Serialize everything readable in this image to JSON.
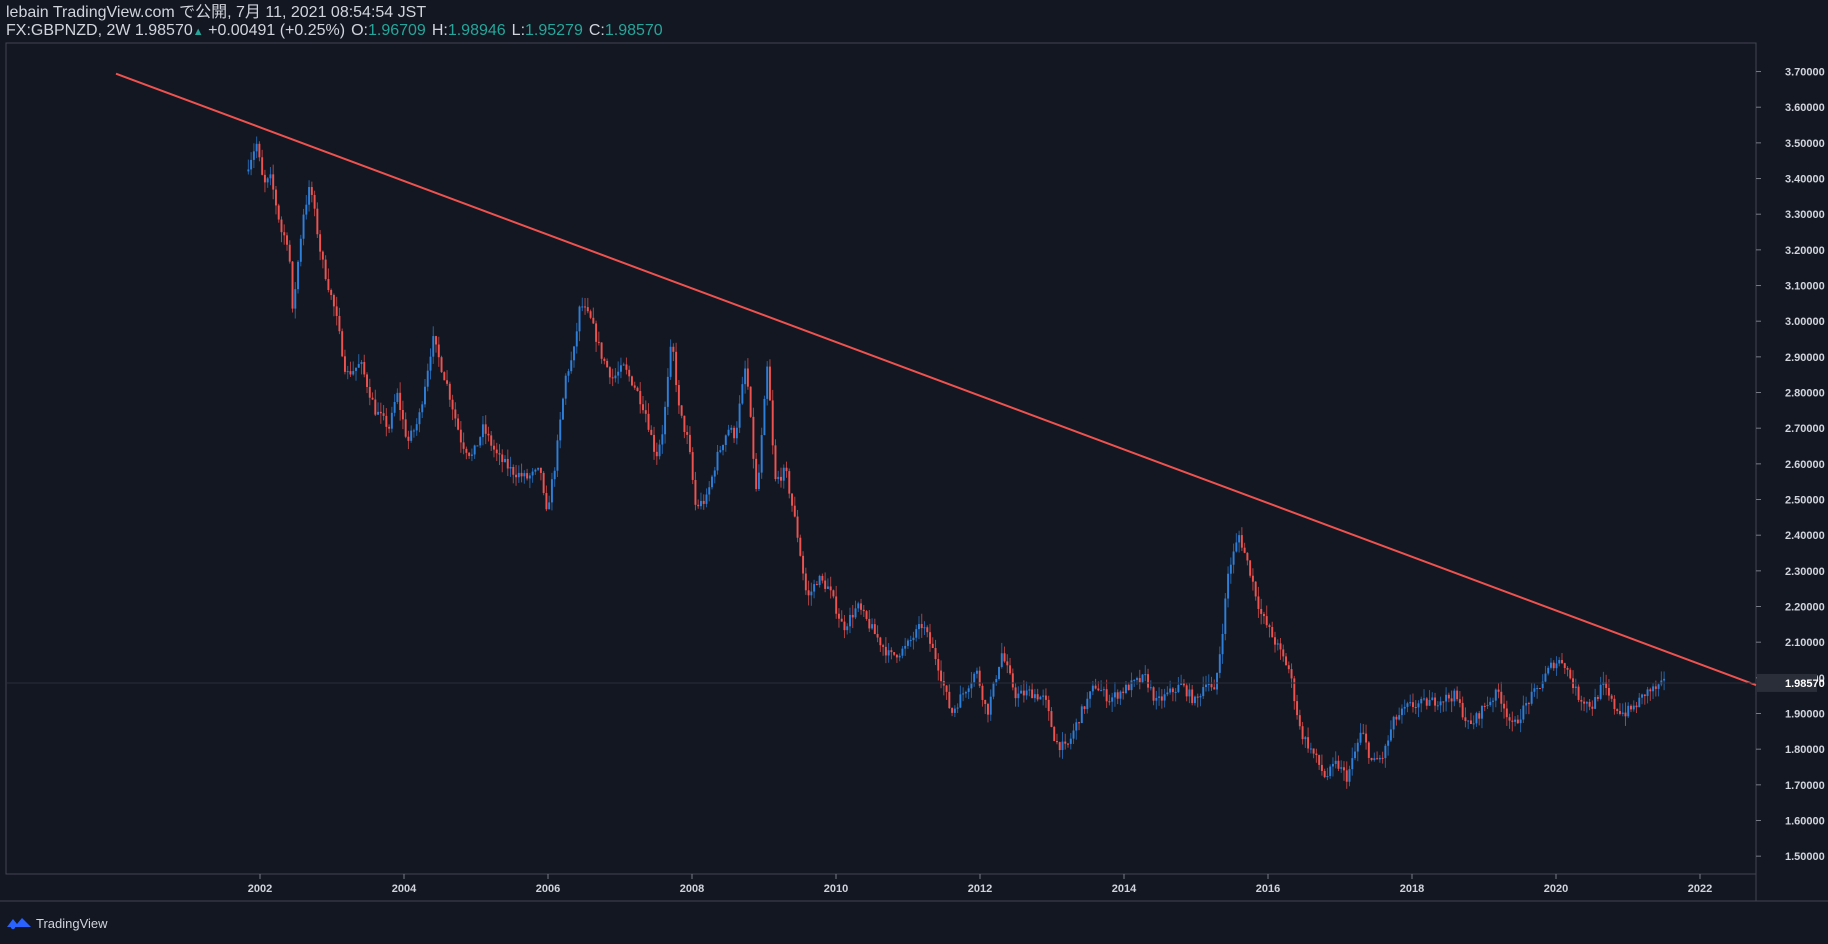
{
  "header": {
    "line1": "lebain TradingView.com で公開, 7月 11, 2021 08:54:54 JST",
    "symbol": "FX:GBPNZD, 2W",
    "last": "1.98570",
    "arrow": "▲",
    "change": "+0.00491 (+0.25%)",
    "o_label": "O:",
    "o_val": "1.96709",
    "h_label": "H:",
    "h_val": "1.98946",
    "l_label": "L:",
    "l_val": "1.95279",
    "c_label": "C:",
    "c_val": "1.98570"
  },
  "footer": {
    "brand": "TradingView",
    "logo_icon": "tradingview-logo-icon"
  },
  "colors": {
    "background": "#131722",
    "up": "#2e7fd9",
    "down": "#ef5350",
    "trendline": "#ef5350",
    "price_tag_bg": "#2a2e39",
    "text": "#d1d4dc",
    "green": "#26a69a"
  },
  "chart_data": {
    "type": "candlestick",
    "symbol": "GBPNZD",
    "interval": "2W",
    "ylim": [
      1.45,
      3.78
    ],
    "y_ticks": [
      "1.50000",
      "1.60000",
      "1.70000",
      "1.80000",
      "1.90000",
      "2.00000",
      "2.10000",
      "2.20000",
      "2.30000",
      "2.40000",
      "2.50000",
      "2.60000",
      "2.70000",
      "2.80000",
      "2.90000",
      "3.00000",
      "3.10000",
      "3.20000",
      "3.30000",
      "3.40000",
      "3.50000",
      "3.60000",
      "3.70000"
    ],
    "x_ticks": [
      "2002",
      "2004",
      "2006",
      "2008",
      "2010",
      "2012",
      "2014",
      "2016",
      "2018",
      "2020",
      "2022"
    ],
    "last_price": "1.98570",
    "trendline": [
      {
        "year": 2001.98,
        "price": 3.545
      },
      {
        "year": 2015.6,
        "price": 2.52
      }
    ],
    "price_path": [
      [
        2001.8,
        3.42
      ],
      [
        2001.95,
        3.5
      ],
      [
        2002.05,
        3.38
      ],
      [
        2002.15,
        3.4
      ],
      [
        2002.3,
        3.25
      ],
      [
        2002.4,
        3.22
      ],
      [
        2002.45,
        3.02
      ],
      [
        2002.6,
        3.3
      ],
      [
        2002.7,
        3.38
      ],
      [
        2002.85,
        3.18
      ],
      [
        2003.05,
        3.02
      ],
      [
        2003.2,
        2.85
      ],
      [
        2003.4,
        2.88
      ],
      [
        2003.6,
        2.75
      ],
      [
        2003.8,
        2.7
      ],
      [
        2003.9,
        2.8
      ],
      [
        2004.05,
        2.66
      ],
      [
        2004.2,
        2.72
      ],
      [
        2004.4,
        2.95
      ],
      [
        2004.6,
        2.82
      ],
      [
        2004.8,
        2.66
      ],
      [
        2004.95,
        2.62
      ],
      [
        2005.1,
        2.7
      ],
      [
        2005.3,
        2.62
      ],
      [
        2005.5,
        2.58
      ],
      [
        2005.7,
        2.56
      ],
      [
        2005.9,
        2.58
      ],
      [
        2005.97,
        2.45
      ],
      [
        2006.1,
        2.6
      ],
      [
        2006.25,
        2.85
      ],
      [
        2006.35,
        2.9
      ],
      [
        2006.45,
        3.05
      ],
      [
        2006.6,
        3.0
      ],
      [
        2006.75,
        2.9
      ],
      [
        2006.9,
        2.84
      ],
      [
        2007.05,
        2.87
      ],
      [
        2007.2,
        2.82
      ],
      [
        2007.35,
        2.75
      ],
      [
        2007.5,
        2.62
      ],
      [
        2007.6,
        2.7
      ],
      [
        2007.72,
        2.95
      ],
      [
        2007.82,
        2.75
      ],
      [
        2007.95,
        2.66
      ],
      [
        2008.05,
        2.48
      ],
      [
        2008.2,
        2.5
      ],
      [
        2008.35,
        2.62
      ],
      [
        2008.5,
        2.7
      ],
      [
        2008.6,
        2.68
      ],
      [
        2008.75,
        2.88
      ],
      [
        2008.9,
        2.5
      ],
      [
        2009.05,
        2.88
      ],
      [
        2009.15,
        2.55
      ],
      [
        2009.3,
        2.58
      ],
      [
        2009.45,
        2.42
      ],
      [
        2009.6,
        2.22
      ],
      [
        2009.75,
        2.28
      ],
      [
        2009.9,
        2.25
      ],
      [
        2010.1,
        2.14
      ],
      [
        2010.3,
        2.2
      ],
      [
        2010.55,
        2.12
      ],
      [
        2010.75,
        2.06
      ],
      [
        2010.95,
        2.08
      ],
      [
        2011.2,
        2.15
      ],
      [
        2011.4,
        2.05
      ],
      [
        2011.6,
        1.9
      ],
      [
        2011.8,
        1.97
      ],
      [
        2011.95,
        2.02
      ],
      [
        2012.1,
        1.9
      ],
      [
        2012.3,
        2.07
      ],
      [
        2012.5,
        1.95
      ],
      [
        2012.7,
        1.96
      ],
      [
        2012.9,
        1.94
      ],
      [
        2013.05,
        1.82
      ],
      [
        2013.2,
        1.8
      ],
      [
        2013.4,
        1.9
      ],
      [
        2013.6,
        1.98
      ],
      [
        2013.8,
        1.94
      ],
      [
        2013.95,
        1.96
      ],
      [
        2014.1,
        1.98
      ],
      [
        2014.3,
        2.0
      ],
      [
        2014.45,
        1.93
      ],
      [
        2014.65,
        1.96
      ],
      [
        2014.8,
        1.98
      ],
      [
        2015.0,
        1.93
      ],
      [
        2015.15,
        2.0
      ],
      [
        2015.25,
        1.95
      ],
      [
        2015.35,
        2.1
      ],
      [
        2015.45,
        2.3
      ],
      [
        2015.6,
        2.4
      ],
      [
        2015.75,
        2.3
      ],
      [
        2015.9,
        2.18
      ],
      [
        2016.1,
        2.1
      ],
      [
        2016.3,
        2.02
      ],
      [
        2016.45,
        1.85
      ],
      [
        2016.65,
        1.78
      ],
      [
        2016.8,
        1.72
      ],
      [
        2016.95,
        1.76
      ],
      [
        2017.1,
        1.72
      ],
      [
        2017.3,
        1.85
      ],
      [
        2017.45,
        1.76
      ],
      [
        2017.6,
        1.78
      ],
      [
        2017.75,
        1.88
      ],
      [
        2017.95,
        1.92
      ],
      [
        2018.2,
        1.93
      ],
      [
        2018.4,
        1.94
      ],
      [
        2018.6,
        1.95
      ],
      [
        2018.8,
        1.86
      ],
      [
        2019.0,
        1.92
      ],
      [
        2019.2,
        1.96
      ],
      [
        2019.4,
        1.86
      ],
      [
        2019.6,
        1.93
      ],
      [
        2019.75,
        1.97
      ],
      [
        2019.95,
        2.04
      ],
      [
        2020.1,
        2.05
      ],
      [
        2020.3,
        1.95
      ],
      [
        2020.5,
        1.92
      ],
      [
        2020.65,
        1.98
      ],
      [
        2020.8,
        1.92
      ],
      [
        2020.95,
        1.9
      ],
      [
        2021.1,
        1.92
      ],
      [
        2021.25,
        1.96
      ],
      [
        2021.4,
        1.97
      ],
      [
        2021.52,
        1.9857
      ]
    ]
  }
}
